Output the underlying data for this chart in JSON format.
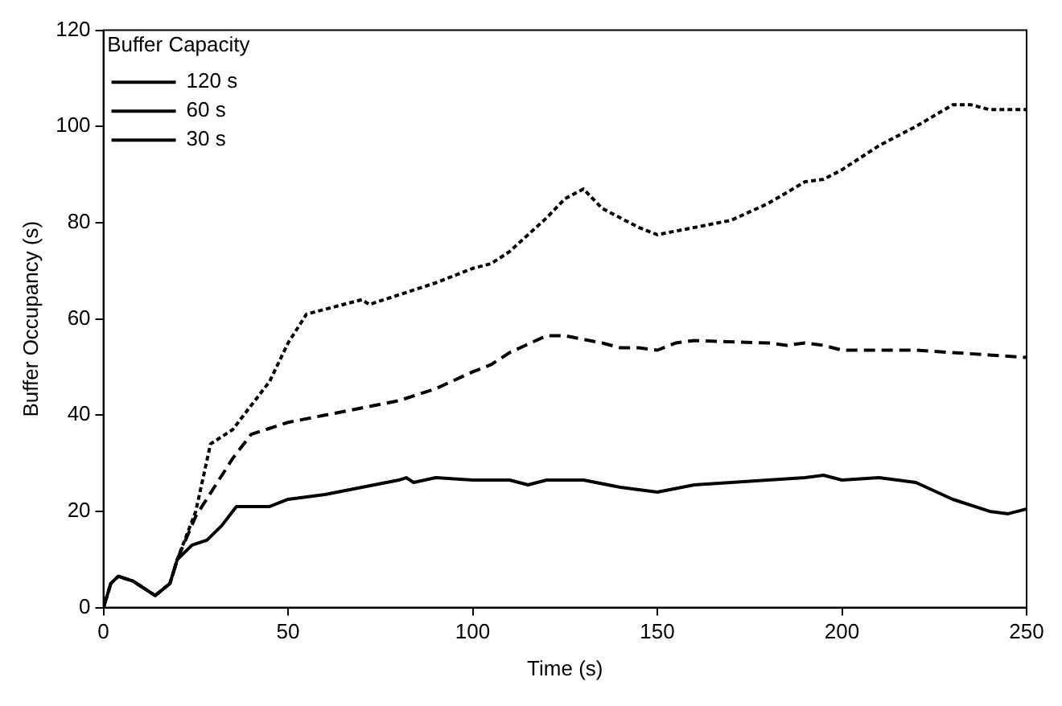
{
  "chart_data": {
    "type": "line",
    "xlabel": "Time (s)",
    "ylabel": "Buffer Occupancy (s)",
    "legend_title": "Buffer Capacity",
    "legend": "top left",
    "grid": false,
    "marker": "none",
    "xlim": [
      0,
      250
    ],
    "xticks": [
      0,
      50,
      100,
      150,
      200,
      250
    ],
    "ylim": [
      0,
      120
    ],
    "yticks": [
      0,
      20,
      40,
      60,
      80,
      100,
      120
    ],
    "series": [
      {
        "name": "120 s",
        "color": "#000000",
        "line_style": "dotted",
        "x": [
          0,
          2,
          4,
          8,
          14,
          18,
          20,
          25,
          29,
          35,
          40,
          45,
          50,
          55,
          60,
          70,
          72,
          80,
          90,
          100,
          105,
          110,
          120,
          125,
          130,
          135,
          140,
          145,
          150,
          160,
          170,
          180,
          190,
          195,
          200,
          210,
          220,
          230,
          235,
          240,
          250
        ],
        "values": [
          0,
          5,
          6.5,
          5.5,
          2.5,
          5,
          10,
          20,
          34,
          37,
          42,
          47,
          55,
          61,
          62,
          64,
          63,
          65,
          67.5,
          70.5,
          71.5,
          74,
          81,
          85,
          87,
          83,
          81,
          79,
          77.5,
          79,
          80.5,
          84,
          88.5,
          89,
          91,
          96,
          100,
          104.5,
          104.5,
          103.5,
          103.5
        ]
      },
      {
        "name": "60 s",
        "color": "#000000",
        "line_style": "dashed",
        "x": [
          0,
          2,
          4,
          8,
          14,
          18,
          20,
          25,
          30,
          35,
          40,
          50,
          60,
          70,
          80,
          90,
          100,
          105,
          110,
          120,
          125,
          135,
          140,
          145,
          150,
          155,
          160,
          180,
          185,
          190,
          195,
          200,
          210,
          220,
          230,
          240,
          250
        ],
        "values": [
          0,
          5,
          6.5,
          5.5,
          2.5,
          5,
          10,
          19,
          25,
          31,
          36,
          38.5,
          40,
          41.5,
          43,
          45.5,
          49,
          50.5,
          53,
          56.5,
          56.5,
          55,
          54,
          54,
          53.5,
          55,
          55.5,
          55,
          54.5,
          55,
          54.5,
          53.5,
          53.5,
          53.5,
          53,
          52.5,
          52
        ]
      },
      {
        "name": "30 s",
        "color": "#000000",
        "line_style": "solid",
        "x": [
          0,
          2,
          4,
          8,
          14,
          18,
          20,
          24,
          28,
          32,
          36,
          40,
          45,
          50,
          60,
          70,
          80,
          82,
          84,
          90,
          100,
          110,
          115,
          120,
          130,
          140,
          150,
          160,
          170,
          180,
          190,
          195,
          200,
          210,
          220,
          230,
          240,
          245,
          250
        ],
        "values": [
          0,
          5,
          6.5,
          5.5,
          2.5,
          5,
          10,
          13,
          14,
          17,
          21,
          21,
          21,
          22.5,
          23.5,
          25,
          26.5,
          27,
          26,
          27,
          26.5,
          26.5,
          25.5,
          26.5,
          26.5,
          25,
          24,
          25.5,
          26,
          26.5,
          27,
          27.5,
          26.5,
          27,
          26,
          22.5,
          20,
          19.5,
          20.5
        ]
      }
    ]
  }
}
